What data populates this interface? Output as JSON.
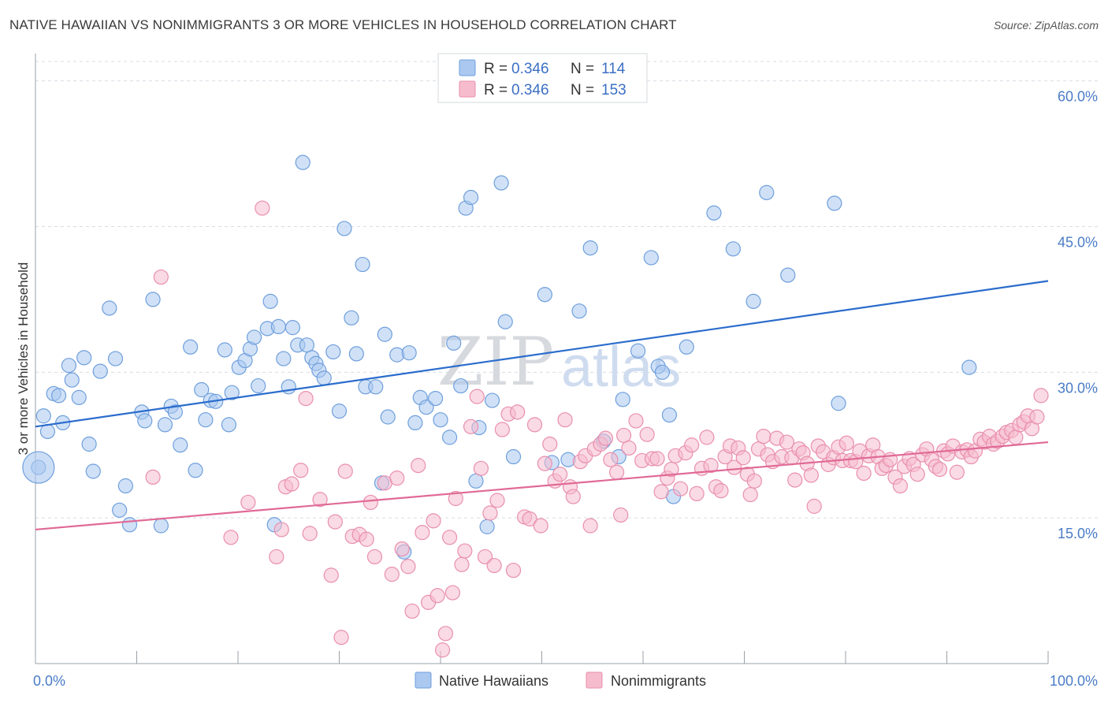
{
  "header": {
    "title": "NATIVE HAWAIIAN VS NONIMMIGRANTS 3 OR MORE VEHICLES IN HOUSEHOLD CORRELATION CHART",
    "source": "Source: ZipAtlas.com"
  },
  "watermark": {
    "zip": "ZIP",
    "atlas": "atlas"
  },
  "colors": {
    "blue_fill": "#aac8f0",
    "blue_stroke": "#6f9fdc",
    "blue_line": "#2a6ccc",
    "pink_fill": "#f6bccd",
    "pink_stroke": "#e98fae",
    "pink_line": "#e06a96",
    "grid": "#d8dce2",
    "axis_label": "#4a7cc7"
  },
  "legend": {
    "series": [
      {
        "r_label": "R =",
        "r_value": "0.346",
        "n_label": "N =",
        "n_value": "114"
      },
      {
        "r_label": "R =",
        "r_value": "0.346",
        "n_label": "N =",
        "n_value": "153"
      }
    ]
  },
  "bottom_legend": [
    "Native Hawaiians",
    "Nonimmigrants"
  ],
  "chart_data": {
    "type": "scatter",
    "title": "NATIVE HAWAIIAN VS NONIMMIGRANTS 3 OR MORE VEHICLES IN HOUSEHOLD CORRELATION CHART",
    "xlabel": "",
    "ylabel": "3 or more Vehicles in Household",
    "xlim": [
      0,
      100
    ],
    "ylim": [
      0,
      62
    ],
    "x_tick_labels": [
      "0.0%",
      "100.0%"
    ],
    "y_ticks": [
      15,
      30,
      45,
      60
    ],
    "y_tick_labels": [
      "15.0%",
      "30.0%",
      "45.0%",
      "60.0%"
    ],
    "grid": true,
    "legend_position": "top-center",
    "series": [
      {
        "name": "Native Hawaiians",
        "r": 0.346,
        "n": 114,
        "trend": [
          [
            0,
            24.4
          ],
          [
            100,
            39.4
          ]
        ],
        "points": [
          [
            0.3,
            20.2
          ],
          [
            0.8,
            25.5
          ],
          [
            1.2,
            23.9
          ],
          [
            1.8,
            27.8
          ],
          [
            2.3,
            27.6
          ],
          [
            2.7,
            24.8
          ],
          [
            3.3,
            30.7
          ],
          [
            3.6,
            29.2
          ],
          [
            4.3,
            27.4
          ],
          [
            4.8,
            31.5
          ],
          [
            5.3,
            22.6
          ],
          [
            5.7,
            19.8
          ],
          [
            6.4,
            30.1
          ],
          [
            7.3,
            36.6
          ],
          [
            7.9,
            31.4
          ],
          [
            8.3,
            15.8
          ],
          [
            8.9,
            18.3
          ],
          [
            9.3,
            14.3
          ],
          [
            10.5,
            25.9
          ],
          [
            10.8,
            25.0
          ],
          [
            11.6,
            37.5
          ],
          [
            12.4,
            14.2
          ],
          [
            12.8,
            24.6
          ],
          [
            13.4,
            26.5
          ],
          [
            13.8,
            25.9
          ],
          [
            14.3,
            22.5
          ],
          [
            15.3,
            32.6
          ],
          [
            15.8,
            19.9
          ],
          [
            16.4,
            28.2
          ],
          [
            16.8,
            25.1
          ],
          [
            17.3,
            27.1
          ],
          [
            17.8,
            27.0
          ],
          [
            18.7,
            32.3
          ],
          [
            19.1,
            24.6
          ],
          [
            19.4,
            27.9
          ],
          [
            20.1,
            30.5
          ],
          [
            20.7,
            31.2
          ],
          [
            21.2,
            32.4
          ],
          [
            21.6,
            33.6
          ],
          [
            22.0,
            28.6
          ],
          [
            22.9,
            34.5
          ],
          [
            23.2,
            37.3
          ],
          [
            23.6,
            14.3
          ],
          [
            24.0,
            34.7
          ],
          [
            24.5,
            31.4
          ],
          [
            25.0,
            28.5
          ],
          [
            25.4,
            34.6
          ],
          [
            25.9,
            32.8
          ],
          [
            26.4,
            51.6
          ],
          [
            26.8,
            32.8
          ],
          [
            27.3,
            31.5
          ],
          [
            27.7,
            30.9
          ],
          [
            28.0,
            30.2
          ],
          [
            28.5,
            29.4
          ],
          [
            29.4,
            32.1
          ],
          [
            30.0,
            26.0
          ],
          [
            30.5,
            44.8
          ],
          [
            31.2,
            35.6
          ],
          [
            31.7,
            31.9
          ],
          [
            32.3,
            41.1
          ],
          [
            32.6,
            28.5
          ],
          [
            33.6,
            28.5
          ],
          [
            34.2,
            18.6
          ],
          [
            34.5,
            33.9
          ],
          [
            34.8,
            25.4
          ],
          [
            35.7,
            31.8
          ],
          [
            36.4,
            11.5
          ],
          [
            36.9,
            32.0
          ],
          [
            37.5,
            24.8
          ],
          [
            38.0,
            27.4
          ],
          [
            38.6,
            26.4
          ],
          [
            39.5,
            27.3
          ],
          [
            40.0,
            25.1
          ],
          [
            40.9,
            23.3
          ],
          [
            41.3,
            33.0
          ],
          [
            42.0,
            28.6
          ],
          [
            42.5,
            46.9
          ],
          [
            43.0,
            48.0
          ],
          [
            43.5,
            18.8
          ],
          [
            43.8,
            24.3
          ],
          [
            44.6,
            14.1
          ],
          [
            45.1,
            27.1
          ],
          [
            46.0,
            49.5
          ],
          [
            46.4,
            35.2
          ],
          [
            47.2,
            21.3
          ],
          [
            50.3,
            38.0
          ],
          [
            51.0,
            20.7
          ],
          [
            52.6,
            21.0
          ],
          [
            53.7,
            36.3
          ],
          [
            54.8,
            42.8
          ],
          [
            56.1,
            22.9
          ],
          [
            57.6,
            21.3
          ],
          [
            58.0,
            27.2
          ],
          [
            59.5,
            32.2
          ],
          [
            60.8,
            41.8
          ],
          [
            61.5,
            30.6
          ],
          [
            61.9,
            30.0
          ],
          [
            62.6,
            25.6
          ],
          [
            63.0,
            17.2
          ],
          [
            64.3,
            32.6
          ],
          [
            67.0,
            46.4
          ],
          [
            68.9,
            42.7
          ],
          [
            70.9,
            37.3
          ],
          [
            72.2,
            48.5
          ],
          [
            74.3,
            40.0
          ],
          [
            78.9,
            47.4
          ],
          [
            79.3,
            26.8
          ],
          [
            92.2,
            30.5
          ]
        ]
      },
      {
        "name": "Nonimmigrants",
        "r": 0.346,
        "n": 153,
        "trend": [
          [
            0,
            13.8
          ],
          [
            100,
            22.8
          ]
        ],
        "points": [
          [
            11.6,
            19.2
          ],
          [
            12.4,
            39.8
          ],
          [
            19.3,
            13.0
          ],
          [
            21.0,
            16.6
          ],
          [
            22.4,
            46.9
          ],
          [
            23.8,
            11.0
          ],
          [
            24.3,
            13.8
          ],
          [
            24.7,
            18.2
          ],
          [
            25.3,
            18.5
          ],
          [
            26.2,
            19.9
          ],
          [
            26.7,
            27.3
          ],
          [
            27.1,
            13.4
          ],
          [
            28.1,
            16.9
          ],
          [
            29.2,
            9.1
          ],
          [
            29.6,
            14.6
          ],
          [
            30.2,
            2.7
          ],
          [
            30.6,
            19.8
          ],
          [
            31.3,
            13.1
          ],
          [
            32.0,
            13.3
          ],
          [
            32.7,
            12.8
          ],
          [
            33.1,
            16.6
          ],
          [
            33.5,
            11.0
          ],
          [
            34.5,
            18.6
          ],
          [
            35.2,
            9.2
          ],
          [
            35.7,
            19.1
          ],
          [
            36.2,
            11.8
          ],
          [
            36.8,
            10.0
          ],
          [
            37.2,
            5.4
          ],
          [
            37.8,
            20.4
          ],
          [
            38.2,
            13.5
          ],
          [
            38.8,
            6.3
          ],
          [
            39.3,
            14.7
          ],
          [
            39.7,
            7.0
          ],
          [
            40.2,
            1.4
          ],
          [
            40.5,
            3.1
          ],
          [
            40.9,
            13.0
          ],
          [
            41.2,
            7.3
          ],
          [
            41.5,
            17.0
          ],
          [
            42.1,
            10.2
          ],
          [
            42.4,
            11.6
          ],
          [
            43.0,
            24.4
          ],
          [
            43.6,
            27.5
          ],
          [
            44.0,
            20.1
          ],
          [
            44.4,
            11.0
          ],
          [
            44.9,
            15.5
          ],
          [
            45.3,
            10.1
          ],
          [
            45.6,
            16.8
          ],
          [
            46.1,
            24.1
          ],
          [
            46.7,
            25.7
          ],
          [
            47.2,
            9.6
          ],
          [
            47.6,
            25.9
          ],
          [
            48.3,
            15.1
          ],
          [
            48.8,
            14.9
          ],
          [
            49.3,
            24.6
          ],
          [
            49.9,
            14.2
          ],
          [
            50.3,
            20.6
          ],
          [
            50.8,
            22.6
          ],
          [
            51.3,
            18.8
          ],
          [
            51.8,
            19.5
          ],
          [
            52.3,
            25.1
          ],
          [
            52.8,
            18.2
          ],
          [
            53.1,
            17.2
          ],
          [
            53.8,
            20.8
          ],
          [
            54.3,
            21.4
          ],
          [
            54.8,
            14.2
          ],
          [
            55.2,
            22.1
          ],
          [
            55.8,
            22.6
          ],
          [
            56.3,
            23.2
          ],
          [
            56.8,
            21.0
          ],
          [
            57.4,
            19.7
          ],
          [
            57.8,
            15.3
          ],
          [
            58.1,
            23.5
          ],
          [
            58.6,
            22.2
          ],
          [
            59.3,
            25.0
          ],
          [
            59.9,
            20.9
          ],
          [
            60.4,
            23.6
          ],
          [
            60.9,
            21.1
          ],
          [
            61.4,
            21.1
          ],
          [
            61.8,
            17.7
          ],
          [
            62.4,
            19.1
          ],
          [
            62.8,
            20.0
          ],
          [
            63.2,
            21.4
          ],
          [
            63.7,
            18.0
          ],
          [
            64.2,
            21.7
          ],
          [
            64.8,
            22.5
          ],
          [
            65.3,
            17.5
          ],
          [
            65.8,
            20.1
          ],
          [
            66.3,
            23.3
          ],
          [
            66.7,
            20.4
          ],
          [
            67.2,
            18.2
          ],
          [
            67.7,
            17.8
          ],
          [
            68.1,
            21.3
          ],
          [
            68.6,
            22.4
          ],
          [
            69.0,
            20.2
          ],
          [
            69.4,
            22.2
          ],
          [
            69.9,
            21.2
          ],
          [
            70.3,
            19.5
          ],
          [
            70.6,
            17.4
          ],
          [
            71.0,
            18.8
          ],
          [
            71.4,
            22.1
          ],
          [
            71.9,
            23.4
          ],
          [
            72.3,
            21.5
          ],
          [
            72.8,
            20.8
          ],
          [
            73.2,
            23.2
          ],
          [
            73.7,
            21.3
          ],
          [
            74.2,
            22.8
          ],
          [
            74.7,
            21.2
          ],
          [
            75.0,
            18.9
          ],
          [
            75.4,
            22.1
          ],
          [
            75.8,
            21.7
          ],
          [
            76.2,
            20.6
          ],
          [
            76.6,
            19.4
          ],
          [
            76.9,
            16.2
          ],
          [
            77.3,
            22.4
          ],
          [
            77.8,
            21.8
          ],
          [
            78.3,
            20.5
          ],
          [
            78.8,
            21.2
          ],
          [
            79.3,
            22.3
          ],
          [
            79.7,
            20.9
          ],
          [
            80.1,
            22.7
          ],
          [
            80.5,
            20.9
          ],
          [
            81.0,
            20.8
          ],
          [
            81.4,
            21.9
          ],
          [
            81.8,
            19.6
          ],
          [
            82.3,
            21.4
          ],
          [
            82.7,
            22.5
          ],
          [
            83.2,
            21.3
          ],
          [
            83.6,
            20.1
          ],
          [
            84.0,
            20.4
          ],
          [
            84.4,
            21.0
          ],
          [
            84.9,
            19.2
          ],
          [
            85.4,
            18.3
          ],
          [
            85.8,
            20.3
          ],
          [
            86.3,
            21.1
          ],
          [
            86.7,
            20.5
          ],
          [
            87.1,
            19.5
          ],
          [
            87.6,
            21.5
          ],
          [
            88.0,
            22.1
          ],
          [
            88.5,
            21.0
          ],
          [
            88.9,
            20.3
          ],
          [
            89.3,
            20.0
          ],
          [
            89.7,
            21.9
          ],
          [
            90.1,
            21.6
          ],
          [
            90.6,
            22.4
          ],
          [
            91.0,
            19.7
          ],
          [
            91.5,
            21.8
          ],
          [
            92.0,
            22.0
          ],
          [
            92.4,
            21.3
          ],
          [
            92.8,
            21.9
          ],
          [
            93.3,
            23.1
          ],
          [
            93.7,
            22.8
          ],
          [
            94.2,
            23.4
          ],
          [
            94.6,
            22.6
          ],
          [
            95.0,
            22.9
          ],
          [
            95.5,
            23.4
          ],
          [
            95.9,
            23.8
          ],
          [
            96.4,
            24.0
          ],
          [
            96.8,
            23.3
          ],
          [
            97.2,
            24.6
          ],
          [
            97.6,
            24.9
          ],
          [
            98.0,
            25.5
          ],
          [
            98.4,
            24.2
          ],
          [
            98.9,
            25.4
          ],
          [
            99.3,
            27.6
          ]
        ]
      }
    ]
  }
}
